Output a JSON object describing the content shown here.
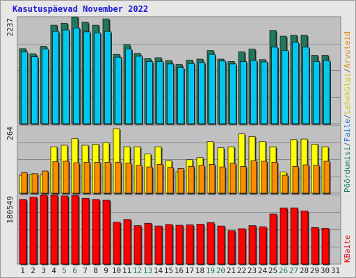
{
  "title": "Kasutuspäevad November 2022",
  "panel_max_labels": [
    "2237",
    "264",
    "180549"
  ],
  "right_labels": {
    "top": [
      {
        "text": "Põõrdumisi",
        "color": "#1e7a5c"
      },
      {
        "text": "/",
        "color": "#606060"
      },
      {
        "text": "Faile",
        "color": "#1b6fd1"
      },
      {
        "text": "/",
        "color": "#606060"
      },
      {
        "text": "Lehekülgi",
        "color": "#c8c800"
      },
      {
        "text": "/",
        "color": "#606060"
      },
      {
        "text": "Arvuteid",
        "color": "#e08000"
      }
    ],
    "bottom": [
      {
        "text": "KBaite",
        "color": "#e00000"
      }
    ]
  },
  "colors": {
    "hits": "#1e7a5c",
    "files": "#00c8f0",
    "pages": "#ffff00",
    "visits": "#ff8c00",
    "kbytes": "#ff0000",
    "weekend_label": "#1e7a5c",
    "weekday_label": "#202020"
  },
  "chart_data": [
    {
      "type": "bar",
      "categories": [
        "1",
        "2",
        "3",
        "4",
        "5",
        "6",
        "7",
        "8",
        "9",
        "10",
        "11",
        "12",
        "13",
        "14",
        "15",
        "16",
        "17",
        "18",
        "19",
        "20",
        "21",
        "22",
        "23",
        "24",
        "25",
        "26",
        "27",
        "28",
        "29",
        "30",
        "31"
      ],
      "weekend_days": [
        5,
        6,
        12,
        13,
        19,
        20,
        26,
        27
      ],
      "ylim": [
        0,
        2237
      ],
      "series": [
        {
          "name": "Põõrdumisi",
          "values": [
            1570,
            1460,
            1620,
            2060,
            2100,
            2230,
            2120,
            2060,
            2190,
            1450,
            1650,
            1470,
            1360,
            1380,
            1320,
            1240,
            1330,
            1350,
            1530,
            1350,
            1300,
            1500,
            1560,
            1340,
            1950,
            1830,
            1850,
            1850,
            1430,
            1430,
            0
          ]
        },
        {
          "name": "Faile",
          "values": [
            1500,
            1400,
            1560,
            1930,
            1960,
            2000,
            1920,
            1900,
            1930,
            1390,
            1560,
            1410,
            1300,
            1300,
            1250,
            1170,
            1260,
            1280,
            1450,
            1310,
            1250,
            1300,
            1320,
            1290,
            1600,
            1530,
            1700,
            1600,
            1300,
            1320,
            0
          ]
        }
      ]
    },
    {
      "type": "bar",
      "categories": [
        "1",
        "2",
        "3",
        "4",
        "5",
        "6",
        "7",
        "8",
        "9",
        "10",
        "11",
        "12",
        "13",
        "14",
        "15",
        "16",
        "17",
        "18",
        "19",
        "20",
        "21",
        "22",
        "23",
        "24",
        "25",
        "26",
        "27",
        "28",
        "29",
        "30",
        "31"
      ],
      "ylim": [
        0,
        264
      ],
      "series": [
        {
          "name": "Lehekülgi",
          "values": [
            70,
            74,
            72,
            180,
            186,
            212,
            186,
            190,
            196,
            250,
            180,
            180,
            152,
            180,
            126,
            82,
            130,
            138,
            200,
            176,
            180,
            230,
            220,
            200,
            180,
            82,
            208,
            210,
            190,
            180,
            0
          ]
        },
        {
          "name": "Arvuteid",
          "values": [
            80,
            76,
            86,
            122,
            124,
            118,
            120,
            120,
            120,
            120,
            116,
            108,
            102,
            112,
            100,
            96,
            104,
            108,
            112,
            102,
            116,
            104,
            126,
            124,
            120,
            70,
            104,
            110,
            108,
            124,
            0
          ]
        }
      ]
    },
    {
      "type": "bar",
      "categories": [
        "1",
        "2",
        "3",
        "4",
        "5",
        "6",
        "7",
        "8",
        "9",
        "10",
        "11",
        "12",
        "13",
        "14",
        "15",
        "16",
        "17",
        "18",
        "19",
        "20",
        "21",
        "22",
        "23",
        "24",
        "25",
        "26",
        "27",
        "28",
        "29",
        "30",
        "31"
      ],
      "ylim": [
        0,
        180549
      ],
      "series": [
        {
          "name": "KBaite",
          "values": [
            168000,
            174000,
            179000,
            179000,
            177000,
            178000,
            171000,
            168000,
            166000,
            109000,
            116000,
            100000,
            106000,
            99000,
            103000,
            101000,
            102000,
            104000,
            108000,
            99000,
            87000,
            92000,
            100000,
            97000,
            130000,
            146000,
            146000,
            138000,
            95000,
            93000,
            0
          ]
        }
      ]
    }
  ]
}
